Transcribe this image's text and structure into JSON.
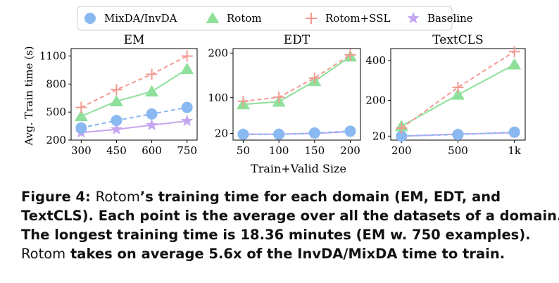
{
  "legend": {
    "entries": [
      {
        "label": "MixDA/InvDA",
        "color": "#8ab8f0",
        "marker": "circle"
      },
      {
        "label": "Rotom",
        "color": "#8ee09a",
        "marker": "triangle"
      },
      {
        "label": "Rotom+SSL",
        "color": "#f39a92",
        "marker": "plus"
      },
      {
        "label": "Baseline",
        "color": "#c5a6f0",
        "marker": "star"
      }
    ]
  },
  "shared_labels": {
    "ylabel": "Avg. Train time (s)",
    "xlabel": "Train+Valid Size"
  },
  "chart_data": [
    {
      "type": "line",
      "title": "EM",
      "x": [
        "300",
        "450",
        "600",
        "750"
      ],
      "yticks": [
        "200",
        "500",
        "800",
        "1100"
      ],
      "ylim": [
        200,
        1180
      ],
      "series": [
        {
          "name": "MixDA/InvDA",
          "values": [
            330,
            410,
            480,
            550
          ]
        },
        {
          "name": "Rotom",
          "values": [
            455,
            615,
            720,
            960
          ]
        },
        {
          "name": "Rotom+SSL",
          "values": [
            550,
            740,
            905,
            1100
          ]
        },
        {
          "name": "Baseline",
          "values": [
            280,
            315,
            360,
            405
          ]
        }
      ]
    },
    {
      "type": "line",
      "title": "EDT",
      "x": [
        "50",
        "100",
        "150",
        "200"
      ],
      "yticks": [
        "20",
        "100",
        "200"
      ],
      "ylim": [
        5,
        210
      ],
      "series": [
        {
          "name": "MixDA/InvDA",
          "values": [
            18,
            18,
            21,
            25
          ]
        },
        {
          "name": "Rotom",
          "values": [
            85,
            91,
            137,
            192
          ]
        },
        {
          "name": "Rotom+SSL",
          "values": [
            92,
            101,
            144,
            196
          ]
        },
        {
          "name": "Baseline",
          "values": [
            18,
            18,
            20,
            24
          ]
        }
      ]
    },
    {
      "type": "line",
      "title": "TextCLS",
      "x": [
        "200",
        "500",
        "1k"
      ],
      "yticks": [
        "20",
        "200",
        "400"
      ],
      "ylim": [
        0,
        460
      ],
      "series": [
        {
          "name": "MixDA/InvDA",
          "values": [
            20,
            28,
            40
          ]
        },
        {
          "name": "Rotom",
          "values": [
            70,
            228,
            380
          ]
        },
        {
          "name": "Rotom+SSL",
          "values": [
            60,
            265,
            445
          ]
        },
        {
          "name": "Baseline",
          "values": [
            20,
            30,
            37
          ]
        }
      ]
    }
  ],
  "caption": {
    "lines": [
      [
        {
          "text": "Figure 4: ",
          "bold": true
        },
        {
          "text": "Rotom",
          "bold": false
        },
        {
          "text": "’s training time for each domain (EM, EDT, and",
          "bold": true
        }
      ],
      [
        {
          "text": "TextCLS). Each point is the average over all the datasets of a domain.",
          "bold": true
        }
      ],
      [
        {
          "text": "The longest training time is 18.36 minutes (EM w. 750 examples).",
          "bold": true
        }
      ],
      [
        {
          "text": "Rotom",
          "bold": false
        },
        {
          "text": " takes on average 5.6x of the InvDA/MixDA time to train.",
          "bold": true
        }
      ]
    ]
  }
}
